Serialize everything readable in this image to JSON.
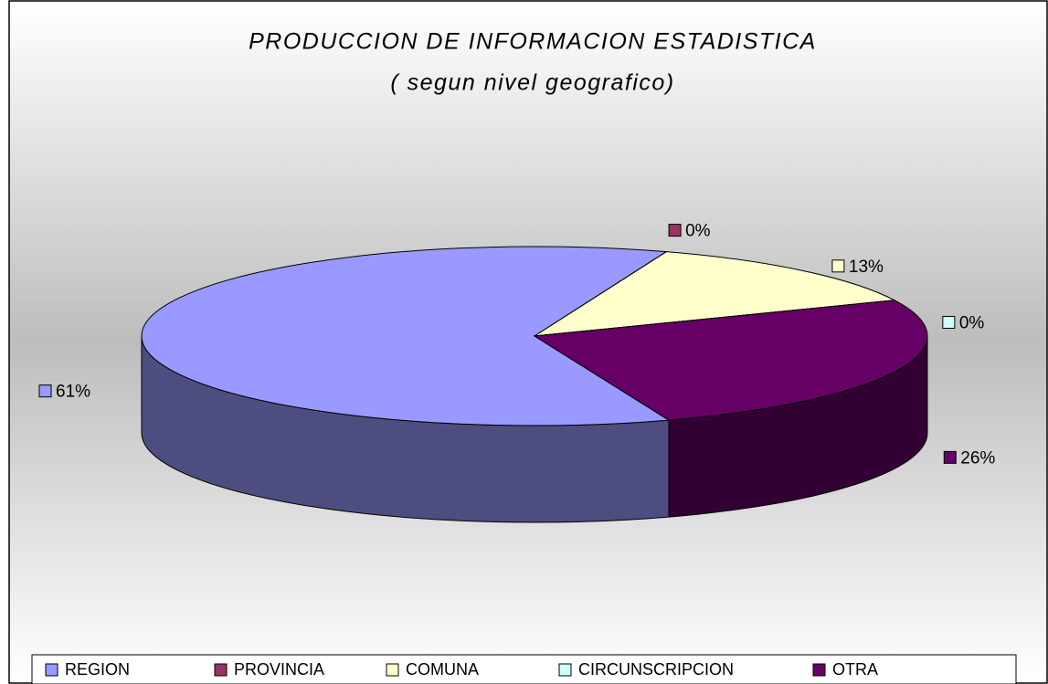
{
  "chart_data": {
    "type": "pie3d",
    "title": "PRODUCCION DE INFORMACION ESTADISTICA",
    "subtitle": "( segun nivel geografico)",
    "categories": [
      "REGION",
      "PROVINCIA",
      "COMUNA",
      "CIRCUNSCRIPCION",
      "OTRA"
    ],
    "values": [
      61,
      0,
      13,
      0,
      26
    ],
    "value_labels": [
      "61%",
      "0%",
      "13%",
      "0%",
      "26%"
    ],
    "colors": [
      "#9999ff",
      "#993366",
      "#ffffcc",
      "#ccffff",
      "#660066"
    ],
    "legend": "bottom"
  }
}
